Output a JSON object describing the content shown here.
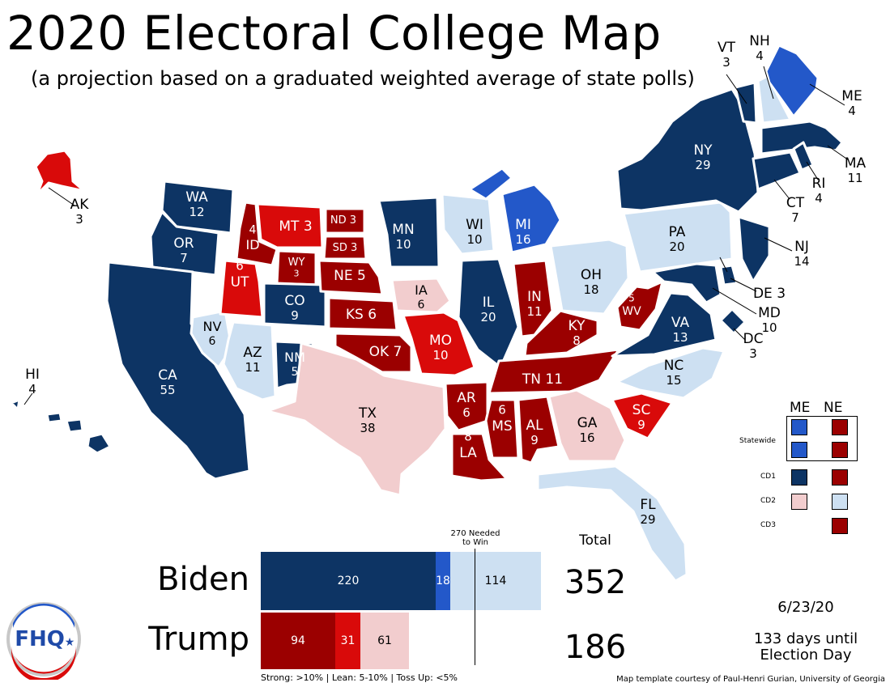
{
  "title": "2020 Electoral College Map",
  "subtitle": "(a projection based on a graduated weighted average of state polls)",
  "colors": {
    "strong_dem": "#0d3464",
    "lean_dem": "#2358c9",
    "tossup_dem": "#cde0f2",
    "tossup_rep": "#f2cdce",
    "lean_rep": "#d90a0a",
    "strong_rep": "#9b0000"
  },
  "states": {
    "WA": {
      "abbr": "WA",
      "ev": "12",
      "cat": "strong_dem"
    },
    "OR": {
      "abbr": "OR",
      "ev": "7",
      "cat": "strong_dem"
    },
    "CA": {
      "abbr": "CA",
      "ev": "55",
      "cat": "strong_dem"
    },
    "NV": {
      "abbr": "NV",
      "ev": "6",
      "cat": "tossup_dem"
    },
    "ID": {
      "abbr": "ID",
      "ev": "4",
      "cat": "strong_rep"
    },
    "MT": {
      "abbr": "MT",
      "ev": "3",
      "cat": "lean_rep"
    },
    "WY": {
      "abbr": "WY",
      "ev": "3",
      "cat": "strong_rep"
    },
    "UT": {
      "abbr": "UT",
      "ev": "6",
      "cat": "lean_rep"
    },
    "AZ": {
      "abbr": "AZ",
      "ev": "11",
      "cat": "tossup_dem"
    },
    "CO": {
      "abbr": "CO",
      "ev": "9",
      "cat": "strong_dem"
    },
    "NM": {
      "abbr": "NM",
      "ev": "5",
      "cat": "strong_dem"
    },
    "ND": {
      "abbr": "ND",
      "ev": "3",
      "cat": "strong_rep"
    },
    "SD": {
      "abbr": "SD",
      "ev": "3",
      "cat": "strong_rep"
    },
    "NE": {
      "abbr": "NE",
      "ev": "5",
      "cat": "strong_rep"
    },
    "KS": {
      "abbr": "KS",
      "ev": "6",
      "cat": "strong_rep"
    },
    "OK": {
      "abbr": "OK",
      "ev": "7",
      "cat": "strong_rep"
    },
    "TX": {
      "abbr": "TX",
      "ev": "38",
      "cat": "tossup_rep"
    },
    "MN": {
      "abbr": "MN",
      "ev": "10",
      "cat": "strong_dem"
    },
    "IA": {
      "abbr": "IA",
      "ev": "6",
      "cat": "tossup_rep"
    },
    "MO": {
      "abbr": "MO",
      "ev": "10",
      "cat": "lean_rep"
    },
    "AR": {
      "abbr": "AR",
      "ev": "6",
      "cat": "strong_rep"
    },
    "LA": {
      "abbr": "LA",
      "ev": "8",
      "cat": "strong_rep"
    },
    "WI": {
      "abbr": "WI",
      "ev": "10",
      "cat": "tossup_dem"
    },
    "IL": {
      "abbr": "IL",
      "ev": "20",
      "cat": "strong_dem"
    },
    "MI": {
      "abbr": "MI",
      "ev": "16",
      "cat": "lean_dem"
    },
    "IN": {
      "abbr": "IN",
      "ev": "11",
      "cat": "strong_rep"
    },
    "OH": {
      "abbr": "OH",
      "ev": "18",
      "cat": "tossup_dem"
    },
    "KY": {
      "abbr": "KY",
      "ev": "8",
      "cat": "strong_rep"
    },
    "TN": {
      "abbr": "TN",
      "ev": "11",
      "cat": "strong_rep"
    },
    "MS": {
      "abbr": "MS",
      "ev": "6",
      "cat": "strong_rep"
    },
    "AL": {
      "abbr": "AL",
      "ev": "9",
      "cat": "strong_rep"
    },
    "GA": {
      "abbr": "GA",
      "ev": "16",
      "cat": "tossup_rep"
    },
    "FL": {
      "abbr": "FL",
      "ev": "29",
      "cat": "tossup_dem"
    },
    "SC": {
      "abbr": "SC",
      "ev": "9",
      "cat": "lean_rep"
    },
    "NC": {
      "abbr": "NC",
      "ev": "15",
      "cat": "tossup_dem"
    },
    "VA": {
      "abbr": "VA",
      "ev": "13",
      "cat": "strong_dem"
    },
    "WV": {
      "abbr": "WV",
      "ev": "5",
      "cat": "strong_rep"
    },
    "PA": {
      "abbr": "PA",
      "ev": "20",
      "cat": "tossup_dem"
    },
    "NY": {
      "abbr": "NY",
      "ev": "29",
      "cat": "strong_dem"
    },
    "VT": {
      "abbr": "VT",
      "ev": "3",
      "cat": "strong_dem"
    },
    "NH": {
      "abbr": "NH",
      "ev": "4",
      "cat": "tossup_dem"
    },
    "ME": {
      "abbr": "ME",
      "ev": "4",
      "cat": "lean_dem"
    },
    "MA": {
      "abbr": "MA",
      "ev": "11",
      "cat": "strong_dem"
    },
    "RI": {
      "abbr": "RI",
      "ev": "4",
      "cat": "strong_dem"
    },
    "CT": {
      "abbr": "CT",
      "ev": "7",
      "cat": "strong_dem"
    },
    "NJ": {
      "abbr": "NJ",
      "ev": "14",
      "cat": "strong_dem"
    },
    "DE": {
      "abbr": "DE",
      "ev": "3",
      "cat": "strong_dem"
    },
    "MD": {
      "abbr": "MD",
      "ev": "10",
      "cat": "strong_dem"
    },
    "DC": {
      "abbr": "DC",
      "ev": "3",
      "cat": "strong_dem"
    },
    "AK": {
      "abbr": "AK",
      "ev": "3",
      "cat": "lean_rep"
    },
    "HI": {
      "abbr": "HI",
      "ev": "4",
      "cat": "strong_dem"
    }
  },
  "tally": {
    "biden": {
      "name": "Biden",
      "strong": "220",
      "lean": "18",
      "tossup": "114",
      "total": "352"
    },
    "trump": {
      "name": "Trump",
      "strong": "94",
      "lean": "31",
      "tossup": "61",
      "total": "186"
    },
    "total_label": "Total",
    "needed_label_1": "270 Needed",
    "needed_label_2": "to Win",
    "legend": "Strong: >10%  |  Lean: 5-10%  |  Toss Up: <5%"
  },
  "split_legend": {
    "me": "ME",
    "ne": "NE",
    "rows": [
      "Statewide",
      "CD1",
      "CD2",
      "CD3"
    ]
  },
  "date": "6/23/20",
  "countdown_1": "133 days until",
  "countdown_2": "Election Day",
  "credit": "Map template courtesy of Paul-Henri Gurian, University of Georgia",
  "logo": "FHQ"
}
